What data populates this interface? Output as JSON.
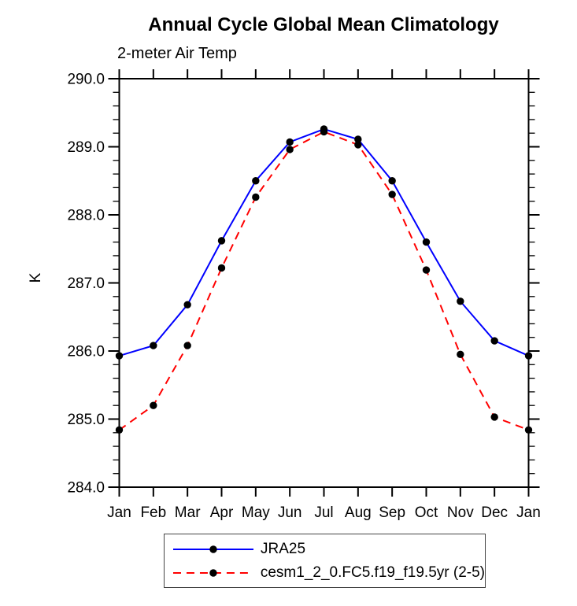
{
  "chart_data": {
    "type": "line",
    "title": "Annual Cycle Global Mean Climatology",
    "subtitle": "2-meter Air Temp",
    "ylabel": "K",
    "x_categories": [
      "Jan",
      "Feb",
      "Mar",
      "Apr",
      "May",
      "Jun",
      "Jul",
      "Aug",
      "Sep",
      "Oct",
      "Nov",
      "Dec",
      "Jan"
    ],
    "ylim": [
      284.0,
      290.0
    ],
    "y_major_step": 1.0,
    "y_minor_step": 0.2,
    "y_tick_labels": [
      "290.0",
      "289.0",
      "288.0",
      "287.0",
      "286.0",
      "285.0",
      "284.0"
    ],
    "grid": "off",
    "legend_position": "bottom",
    "frame_color": "#000000",
    "series": [
      {
        "name": "JRA25",
        "color": "#0000ff",
        "style": "solid",
        "marker": "circle",
        "marker_color": "#000000",
        "values": [
          285.93,
          286.08,
          286.68,
          287.62,
          288.5,
          289.07,
          289.26,
          289.11,
          288.5,
          287.6,
          286.73,
          286.15,
          285.93
        ]
      },
      {
        "name": "cesm1_2_0.FC5.f19_f19.5yr (2-5)",
        "color": "#ff0000",
        "style": "dashed",
        "marker": "circle",
        "marker_color": "#000000",
        "values": [
          284.84,
          285.2,
          286.08,
          287.22,
          288.26,
          288.96,
          289.22,
          289.03,
          288.3,
          287.19,
          285.95,
          285.03,
          284.84
        ]
      }
    ]
  }
}
